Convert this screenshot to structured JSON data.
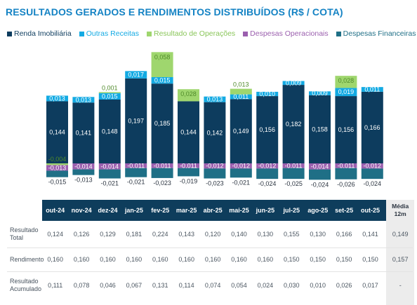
{
  "title": "RESULTADOS GERADOS E RENDIMENTOS DISTRIBUÍDOS (R$ / COTA)",
  "colors": {
    "renda": "#0d3c5e",
    "outras": "#13aae3",
    "resultado_op": "#9fd66e",
    "despesas_op": "#9b5fae",
    "despesas_fin": "#1f6f86",
    "title": "#1583c4"
  },
  "chart_data": {
    "type": "bar",
    "stacked": true,
    "categories": [
      "out-24",
      "nov-24",
      "dez-24",
      "jan-25",
      "fev-25",
      "mar-25",
      "abr-25",
      "mai-25",
      "jun-25",
      "jul-25",
      "ago-25",
      "set-25",
      "out-25"
    ],
    "series": [
      {
        "name": "Renda Imobiliária",
        "color": "#0d3c5e",
        "values": [
          0.144,
          0.141,
          0.148,
          0.197,
          0.185,
          0.144,
          0.142,
          0.149,
          0.156,
          0.182,
          0.158,
          0.156,
          0.166
        ],
        "labels": [
          "0,144",
          "0,141",
          "0,148",
          "0,197",
          "0,185",
          "0,144",
          "0,142",
          "0,149",
          "0,156",
          "0,182",
          "0,158",
          "0,156",
          "0,166"
        ]
      },
      {
        "name": "Outras Receitas",
        "color": "#13aae3",
        "values": [
          0.013,
          0.013,
          0.015,
          0.017,
          0.015,
          0,
          0.013,
          0.011,
          0.01,
          0.009,
          0.009,
          0.019,
          0.011
        ],
        "labels": [
          "0,013",
          "0,013",
          "0,015",
          "0,017",
          "0,015",
          "",
          "0,013",
          "0,011",
          "0,010",
          "0,009",
          "0,009",
          "0,019",
          "0,011"
        ]
      },
      {
        "name": "Resultado de Operações",
        "color": "#9fd66e",
        "values": [
          -0.004,
          0,
          0.001,
          0,
          0.058,
          0.028,
          0,
          0.013,
          0,
          0,
          0,
          0.028,
          0
        ],
        "labels": [
          "-0,004",
          "",
          "0,001",
          "",
          "0,058",
          "0,028",
          "",
          "0,013",
          "",
          "",
          "",
          "0,028",
          ""
        ]
      },
      {
        "name": "Despesas Operacionais",
        "color": "#9b5fae",
        "values": [
          -0.013,
          -0.014,
          -0.014,
          -0.011,
          -0.011,
          -0.011,
          -0.012,
          -0.012,
          -0.012,
          -0.011,
          -0.014,
          -0.011,
          -0.012
        ],
        "labels": [
          "-0,013",
          "-0,014",
          "-0,014",
          "-0,011",
          "-0,011",
          "-0,011",
          "-0,012",
          "-0,012",
          "-0,012",
          "-0,011",
          "-0,014",
          "-0,011",
          "-0,012"
        ]
      },
      {
        "name": "Despesas Financeiras",
        "color": "#1f6f86",
        "values": [
          -0.015,
          -0.013,
          -0.021,
          -0.021,
          -0.023,
          -0.019,
          -0.023,
          -0.021,
          -0.024,
          -0.025,
          -0.024,
          -0.026,
          -0.024
        ],
        "labels": [
          "-0,015",
          "-0,013",
          "-0,021",
          "-0,021",
          "-0,023",
          "-0,019",
          "-0,023",
          "-0,021",
          "-0,024",
          "-0,025",
          "-0,024",
          "-0,026",
          "-0,024"
        ]
      }
    ]
  },
  "table": {
    "columns": [
      "out-24",
      "nov-24",
      "dez-24",
      "jan-25",
      "fev-25",
      "mar-25",
      "abr-25",
      "mai-25",
      "jun-25",
      "jul-25",
      "ago-25",
      "set-25",
      "out-25"
    ],
    "avg_header_1": "Média",
    "avg_header_2": "12m",
    "rows": [
      {
        "label_1": "Resultado",
        "label_2": "Total",
        "values": [
          "0,124",
          "0,126",
          "0,129",
          "0,181",
          "0,224",
          "0,143",
          "0,120",
          "0,140",
          "0,130",
          "0,155",
          "0,130",
          "0,166",
          "0,141"
        ],
        "avg": "0,149"
      },
      {
        "label_1": "Rendimento",
        "label_2": "",
        "values": [
          "0,160",
          "0,160",
          "0,160",
          "0,160",
          "0,160",
          "0,160",
          "0,160",
          "0,160",
          "0,160",
          "0,150",
          "0,150",
          "0,150",
          "0,150"
        ],
        "avg": "0,157"
      },
      {
        "label_1": "Resultado",
        "label_2": "Acumulado",
        "values": [
          "0,111",
          "0,078",
          "0,046",
          "0,067",
          "0,131",
          "0,114",
          "0,074",
          "0,054",
          "0,024",
          "0,030",
          "0,010",
          "0,026",
          "0,017"
        ],
        "avg": "-"
      }
    ]
  }
}
